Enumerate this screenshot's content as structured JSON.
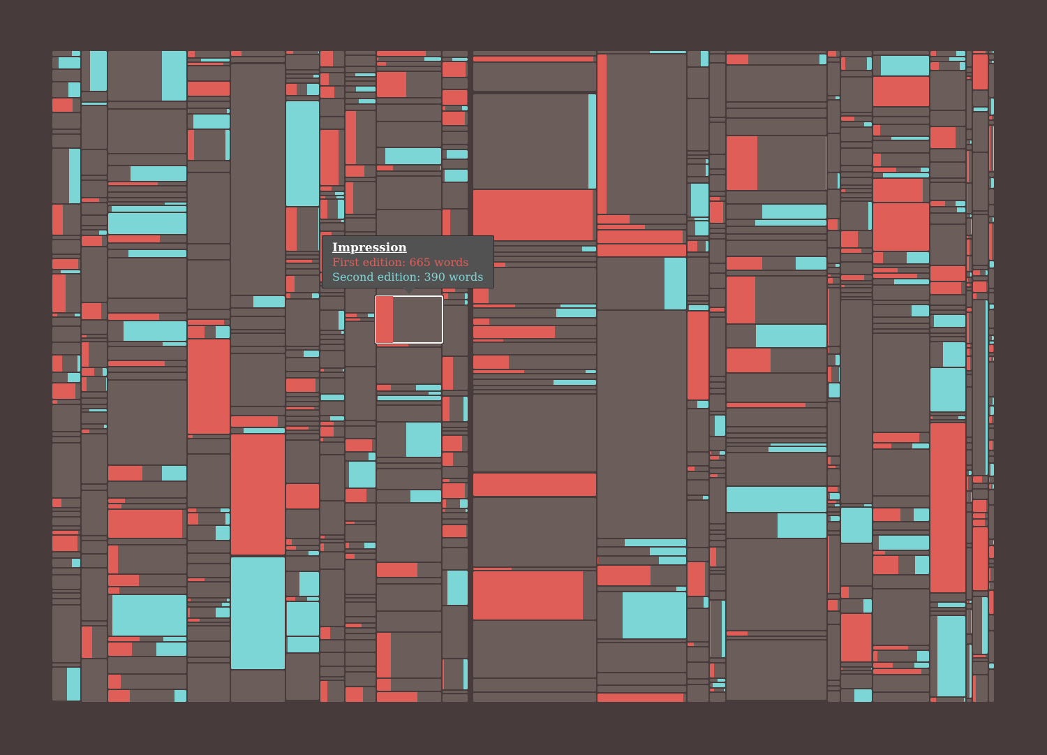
{
  "colors": {
    "background": "#473c3b",
    "cell": "#6b5d5a",
    "first_edition": "#e05e58",
    "second_edition": "#7dd6d6",
    "highlight": "#ffffff"
  },
  "tooltip": {
    "title": "Impression",
    "first": "First edition: 665 words",
    "second": "Second edition: 390 words"
  },
  "chart_data": {
    "type": "treemap",
    "selected": {
      "label": "Impression",
      "first_edition_words": 665,
      "second_edition_words": 390
    },
    "series": [
      {
        "name": "First edition"
      },
      {
        "name": "Second edition"
      }
    ]
  }
}
